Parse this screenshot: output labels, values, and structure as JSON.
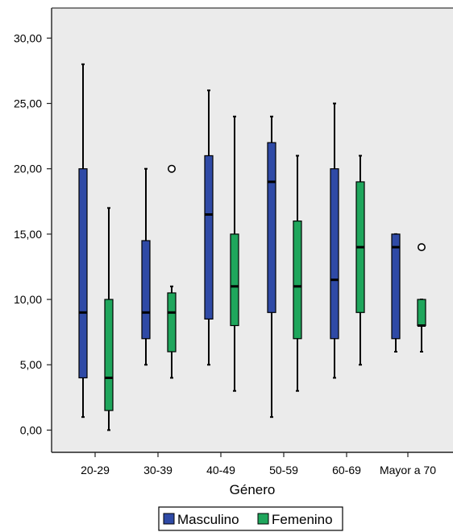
{
  "chart_data": {
    "type": "boxplot",
    "title": "",
    "xlabel": "Género",
    "ylabel": "",
    "categories": [
      "20-29",
      "30-39",
      "40-49",
      "50-59",
      "60-69",
      "Mayor a 70"
    ],
    "ylim": [
      -1.7,
      32.3
    ],
    "yticks": [
      "0,00",
      "5,00",
      "10,00",
      "15,00",
      "20,00",
      "25,00",
      "30,00"
    ],
    "ytick_values": [
      0,
      5,
      10,
      15,
      20,
      25,
      30
    ],
    "grid": false,
    "legend_placement": "bottom",
    "series": [
      {
        "name": "Masculino",
        "color": "#2f4aa6",
        "boxes": [
          {
            "min": 1,
            "q1": 4,
            "median": 9,
            "q3": 20,
            "max": 28,
            "outliers": []
          },
          {
            "min": 5,
            "q1": 7,
            "median": 9,
            "q3": 14.5,
            "max": 20,
            "outliers": []
          },
          {
            "min": 5,
            "q1": 8.5,
            "median": 16.5,
            "q3": 21,
            "max": 26,
            "outliers": []
          },
          {
            "min": 1,
            "q1": 9,
            "median": 19,
            "q3": 22,
            "max": 24,
            "outliers": []
          },
          {
            "min": 4,
            "q1": 7,
            "median": 11.5,
            "q3": 20,
            "max": 25,
            "outliers": []
          },
          {
            "min": 6,
            "q1": 7,
            "median": 14,
            "q3": 15,
            "max": 15,
            "outliers": []
          }
        ]
      },
      {
        "name": "Femenino",
        "color": "#1fa65c",
        "boxes": [
          {
            "min": 0,
            "q1": 1.5,
            "median": 4,
            "q3": 10,
            "max": 17,
            "outliers": []
          },
          {
            "min": 4,
            "q1": 6,
            "median": 9,
            "q3": 10.5,
            "max": 11,
            "outliers": [
              20
            ]
          },
          {
            "min": 3,
            "q1": 8,
            "median": 11,
            "q3": 15,
            "max": 24,
            "outliers": []
          },
          {
            "min": 3,
            "q1": 7,
            "median": 11,
            "q3": 16,
            "max": 21,
            "outliers": []
          },
          {
            "min": 5,
            "q1": 9,
            "median": 14,
            "q3": 19,
            "max": 21,
            "outliers": []
          },
          {
            "min": 6,
            "q1": 8,
            "median": 8,
            "q3": 10,
            "max": 10,
            "outliers": [
              14
            ]
          }
        ]
      }
    ]
  }
}
